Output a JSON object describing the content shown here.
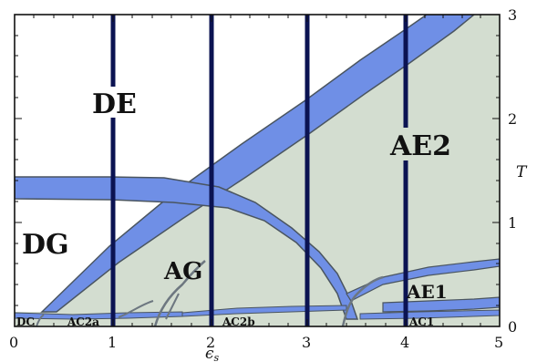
{
  "diagram": {
    "x_axis": {
      "label": "ϵ",
      "label_subscript": "s",
      "ticks": [
        "0",
        "1",
        "2",
        "3",
        "4",
        "5"
      ]
    },
    "y_axis": {
      "label": "T",
      "ticks": [
        "0",
        "1",
        "2",
        "3"
      ]
    },
    "regions": {
      "de": "DE",
      "dg": "DG",
      "ag": "AG",
      "ae2": "AE2",
      "ae1": "AE1",
      "dc": "DC",
      "ac2a": "AC2a",
      "ac2b": "AC2b",
      "ac1": "AC1"
    },
    "colors": {
      "ordered_phase": "#d3ddd0",
      "band": "#6f8fe6",
      "band_dark": "#4d68b0",
      "vertical_line": "#0b1352",
      "background": "#ffffff"
    }
  }
}
